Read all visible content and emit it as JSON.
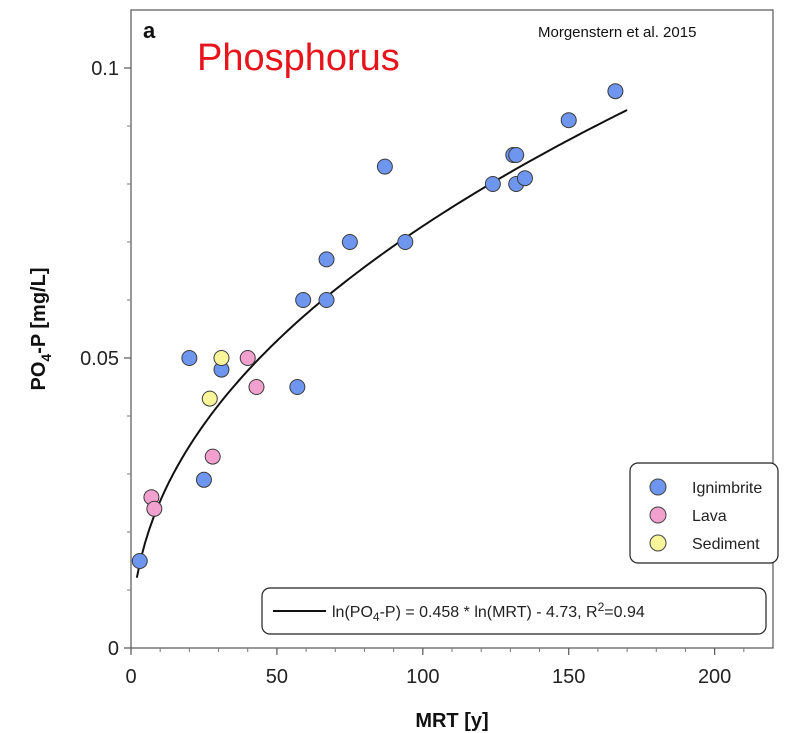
{
  "chart_data": {
    "type": "scatter",
    "panel_label": "a",
    "title": "Phosphorus",
    "citation": "Morgenstern et al. 2015",
    "xlabel": "MRT [y]",
    "ylabel_main": "PO",
    "ylabel_sub": "4",
    "ylabel_rest": "-P [mg/L]",
    "xlim": [
      0,
      220
    ],
    "ylim": [
      0,
      0.11
    ],
    "xticks": [
      0,
      50,
      100,
      150,
      200
    ],
    "xtick_labels": [
      "0",
      "50",
      "100",
      "150",
      "200"
    ],
    "yticks": [
      0,
      0.05,
      0.1
    ],
    "ytick_labels": [
      "0",
      "0.05",
      "0.1"
    ],
    "grid": false,
    "legend_position": "lower-right",
    "series": [
      {
        "name": "Ignimbrite",
        "color": "#6f96ee",
        "points": [
          [
            3,
            0.015
          ],
          [
            20,
            0.05
          ],
          [
            25,
            0.029
          ],
          [
            31,
            0.048
          ],
          [
            57,
            0.045
          ],
          [
            59,
            0.06
          ],
          [
            67,
            0.06
          ],
          [
            67,
            0.067
          ],
          [
            75,
            0.07
          ],
          [
            87,
            0.083
          ],
          [
            94,
            0.07
          ],
          [
            124,
            0.08
          ],
          [
            131,
            0.085
          ],
          [
            132,
            0.085
          ],
          [
            132,
            0.08
          ],
          [
            135,
            0.081
          ],
          [
            150,
            0.091
          ],
          [
            166,
            0.096
          ]
        ]
      },
      {
        "name": "Lava",
        "color": "#f2a1cf",
        "points": [
          [
            7,
            0.026
          ],
          [
            8,
            0.024
          ],
          [
            28,
            0.033
          ],
          [
            40,
            0.05
          ],
          [
            43,
            0.045
          ]
        ]
      },
      {
        "name": "Sediment",
        "color": "#f8f59a",
        "points": [
          [
            27,
            0.043
          ],
          [
            31,
            0.05
          ]
        ]
      }
    ],
    "fit": {
      "slope": 0.458,
      "intercept": -4.73,
      "x_range": [
        2,
        170
      ],
      "eq_pre": "ln(PO",
      "eq_sub": "4",
      "eq_mid": "-P) = 0.458 * ln(MRT) - 4.73,  R",
      "eq_sup": "2",
      "eq_post": "=0.94"
    }
  }
}
